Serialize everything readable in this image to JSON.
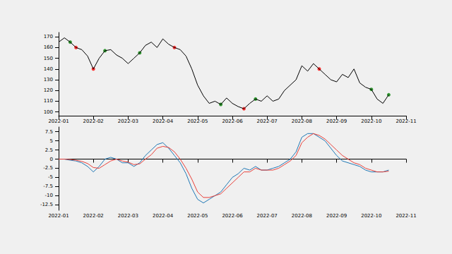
{
  "chart_data": [
    {
      "type": "line",
      "categories": [
        "2022-01",
        null,
        null,
        null,
        null,
        null,
        "2022-02",
        null,
        null,
        null,
        null,
        null,
        "2022-03",
        null,
        null,
        null,
        null,
        null,
        "2022-04",
        null,
        null,
        null,
        null,
        null,
        "2022-05",
        null,
        null,
        null,
        null,
        null,
        "2022-06",
        null,
        null,
        null,
        null,
        null,
        "2022-07",
        null,
        null,
        null,
        null,
        null,
        "2022-08",
        null,
        null,
        null,
        null,
        null,
        "2022-09",
        null,
        null,
        null,
        null,
        null,
        "2022-10",
        null,
        null,
        null,
        null,
        null,
        "2022-11"
      ],
      "series": [
        {
          "color": "#000000",
          "values": [
            165,
            169,
            165,
            160,
            158,
            152,
            140,
            150,
            157,
            158,
            153,
            150,
            145,
            150,
            155,
            162,
            165,
            160,
            168,
            163,
            160,
            158,
            152,
            140,
            125,
            115,
            108,
            110,
            107,
            113,
            108,
            105,
            103,
            108,
            112,
            110,
            115,
            110,
            112,
            120,
            125,
            130,
            143,
            138,
            145,
            140,
            135,
            130,
            128,
            135,
            132,
            140,
            127,
            123,
            121,
            112,
            108,
            116,
            null,
            null,
            null
          ]
        },
        {
          "type": "scatter",
          "color": "green",
          "marker": "circle",
          "values": [
            null,
            null,
            165,
            null,
            null,
            null,
            null,
            null,
            157,
            null,
            null,
            null,
            null,
            null,
            155,
            null,
            null,
            null,
            null,
            null,
            null,
            null,
            null,
            null,
            null,
            null,
            null,
            null,
            107,
            null,
            null,
            null,
            null,
            null,
            112,
            null,
            null,
            null,
            null,
            null,
            null,
            null,
            null,
            null,
            null,
            null,
            null,
            null,
            null,
            null,
            null,
            null,
            null,
            null,
            121,
            null,
            null,
            116,
            null,
            null,
            null
          ]
        },
        {
          "type": "scatter",
          "color": "red",
          "marker": "circle",
          "values": [
            null,
            null,
            null,
            160,
            null,
            null,
            140,
            null,
            null,
            null,
            null,
            null,
            null,
            null,
            null,
            null,
            null,
            null,
            null,
            null,
            160,
            null,
            null,
            null,
            null,
            null,
            null,
            null,
            null,
            null,
            null,
            null,
            103,
            null,
            null,
            null,
            null,
            null,
            null,
            null,
            null,
            null,
            null,
            null,
            null,
            140,
            null,
            null,
            null,
            null,
            null,
            null,
            null,
            null,
            null,
            null,
            null,
            null,
            null,
            null,
            null
          ]
        }
      ],
      "ylim": [
        96.5,
        174
      ],
      "yticks": [
        100,
        110,
        120,
        130,
        140,
        150,
        160,
        170
      ],
      "grid": false
    },
    {
      "type": "line",
      "categories": [
        "2022-01",
        null,
        null,
        null,
        null,
        null,
        "2022-02",
        null,
        null,
        null,
        null,
        null,
        "2022-03",
        null,
        null,
        null,
        null,
        null,
        "2022-04",
        null,
        null,
        null,
        null,
        null,
        "2022-05",
        null,
        null,
        null,
        null,
        null,
        "2022-06",
        null,
        null,
        null,
        null,
        null,
        "2022-07",
        null,
        null,
        null,
        null,
        null,
        "2022-08",
        null,
        null,
        null,
        null,
        null,
        "2022-09",
        null,
        null,
        null,
        null,
        null,
        "2022-10",
        null,
        null,
        null,
        null,
        null,
        "2022-11"
      ],
      "series": [
        {
          "color": "#1f77b4",
          "values": [
            0,
            0,
            -0.3,
            -0.5,
            -1,
            -2,
            -3.5,
            -2,
            0,
            0.5,
            0,
            -1,
            -1,
            -2,
            -1,
            1,
            2.5,
            4,
            4.5,
            3,
            1,
            -1,
            -4,
            -8,
            -11,
            -12,
            -11,
            -10,
            -9,
            -7,
            -5,
            -4,
            -2.5,
            -3,
            -2,
            -3,
            -3,
            -2.5,
            -2,
            -1,
            0,
            2,
            6,
            7,
            7,
            6,
            5,
            3,
            1,
            -0.5,
            -1,
            -1.5,
            -2,
            -3,
            -3.5,
            -3.5,
            -3.5,
            -3,
            null,
            null,
            null
          ]
        },
        {
          "color": "#e8403a",
          "values": [
            0,
            0,
            -0.1,
            -0.3,
            -0.6,
            -1.2,
            -2.3,
            -2.5,
            -1.5,
            -0.5,
            0,
            -0.5,
            -0.8,
            -1.5,
            -1.3,
            0,
            1.2,
            3,
            3.5,
            3.2,
            2,
            0,
            -2.5,
            -5.5,
            -9,
            -10.5,
            -10.5,
            -10,
            -9.5,
            -8,
            -6.5,
            -5,
            -3.5,
            -3.5,
            -2.5,
            -3,
            -3,
            -3,
            -2.5,
            -1.5,
            -0.5,
            1,
            4.5,
            6,
            7,
            6.5,
            5.5,
            4,
            2.5,
            1,
            0,
            -1,
            -1.5,
            -2.5,
            -3,
            -3.5,
            -3.5,
            -3.3,
            null,
            null,
            null
          ]
        }
      ],
      "ylim": [
        -14,
        8.8
      ],
      "yticks": [
        -12.5,
        -10,
        -7.5,
        -5,
        -2.5,
        0,
        2.5,
        5,
        7.5
      ],
      "grid": false
    }
  ]
}
